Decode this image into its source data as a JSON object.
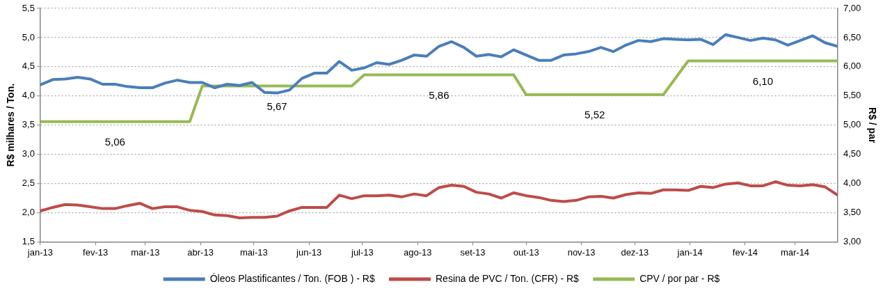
{
  "chart_data": {
    "type": "line",
    "x": [
      "2013-01-01",
      "2013-01-08",
      "2013-01-15",
      "2013-01-22",
      "2013-01-29",
      "2013-02-05",
      "2013-02-12",
      "2013-02-19",
      "2013-02-26",
      "2013-03-05",
      "2013-03-12",
      "2013-03-19",
      "2013-03-26",
      "2013-04-02",
      "2013-04-09",
      "2013-04-16",
      "2013-04-23",
      "2013-04-30",
      "2013-05-07",
      "2013-05-14",
      "2013-05-21",
      "2013-05-28",
      "2013-06-04",
      "2013-06-11",
      "2013-06-18",
      "2013-06-25",
      "2013-07-02",
      "2013-07-09",
      "2013-07-16",
      "2013-07-23",
      "2013-07-30",
      "2013-08-06",
      "2013-08-13",
      "2013-08-20",
      "2013-08-27",
      "2013-09-03",
      "2013-09-10",
      "2013-09-17",
      "2013-09-24",
      "2013-10-01",
      "2013-10-08",
      "2013-10-15",
      "2013-10-22",
      "2013-10-29",
      "2013-11-05",
      "2013-11-12",
      "2013-11-19",
      "2013-11-26",
      "2013-12-03",
      "2013-12-10",
      "2013-12-17",
      "2013-12-24",
      "2013-12-31",
      "2014-01-07",
      "2014-01-14",
      "2014-01-21",
      "2014-01-28",
      "2014-02-04",
      "2014-02-11",
      "2014-02-18",
      "2014-02-25",
      "2014-03-04",
      "2014-03-11",
      "2014-03-18",
      "2014-03-25"
    ],
    "series": [
      {
        "name": "Óleos Plastificantes / Ton. (FOB ) - R$",
        "color": "#4a7ebb",
        "values": [
          4.19,
          4.28,
          4.29,
          4.32,
          4.29,
          4.2,
          4.2,
          4.16,
          4.14,
          4.14,
          4.22,
          4.27,
          4.23,
          4.23,
          4.14,
          4.2,
          4.18,
          4.23,
          4.06,
          4.05,
          4.1,
          4.3,
          4.39,
          4.39,
          4.59,
          4.44,
          4.48,
          4.57,
          4.54,
          4.61,
          4.7,
          4.68,
          4.85,
          4.93,
          4.83,
          4.68,
          4.71,
          4.67,
          4.79,
          4.7,
          4.61,
          4.61,
          4.7,
          4.72,
          4.76,
          4.83,
          4.76,
          4.87,
          4.95,
          4.93,
          4.98,
          4.97,
          4.96,
          4.97,
          4.88,
          5.05,
          5.0,
          4.95,
          4.99,
          4.96,
          4.87,
          4.95,
          5.03,
          4.91,
          4.85
        ]
      },
      {
        "name": "Resina de PVC / Ton. (CFR) - R$",
        "color": "#be4b48",
        "values": [
          2.03,
          2.09,
          2.14,
          2.13,
          2.1,
          2.07,
          2.07,
          2.12,
          2.16,
          2.07,
          2.1,
          2.1,
          2.04,
          2.02,
          1.96,
          1.95,
          1.91,
          1.92,
          1.92,
          1.94,
          2.03,
          2.09,
          2.09,
          2.09,
          2.3,
          2.24,
          2.29,
          2.29,
          2.3,
          2.27,
          2.32,
          2.29,
          2.43,
          2.47,
          2.45,
          2.35,
          2.32,
          2.25,
          2.34,
          2.29,
          2.26,
          2.21,
          2.19,
          2.21,
          2.27,
          2.28,
          2.25,
          2.31,
          2.34,
          2.33,
          2.39,
          2.39,
          2.38,
          2.45,
          2.43,
          2.49,
          2.51,
          2.46,
          2.46,
          2.53,
          2.47,
          2.46,
          2.48,
          2.44,
          2.3
        ]
      },
      {
        "name": "CPV / por par - R$",
        "color": "#98b954",
        "axis": "y2",
        "values": [
          5.06,
          5.06,
          5.06,
          5.06,
          5.06,
          5.06,
          5.06,
          5.06,
          5.06,
          5.06,
          5.06,
          5.06,
          5.06,
          5.67,
          5.67,
          5.67,
          5.67,
          5.67,
          5.67,
          5.67,
          5.67,
          5.67,
          5.67,
          5.67,
          5.67,
          5.67,
          5.86,
          5.86,
          5.86,
          5.86,
          5.86,
          5.86,
          5.86,
          5.86,
          5.86,
          5.86,
          5.86,
          5.86,
          5.86,
          5.52,
          5.52,
          5.52,
          5.52,
          5.52,
          5.52,
          5.52,
          5.52,
          5.52,
          5.52,
          5.52,
          5.52,
          5.81,
          6.1,
          6.1,
          6.1,
          6.1,
          6.1,
          6.1,
          6.1,
          6.1,
          6.1,
          6.1,
          6.1,
          6.1,
          6.1
        ]
      }
    ],
    "xlim": [
      "2013-01-01",
      "2014-03-25"
    ],
    "xticks": [
      {
        "value": "2013-01-01",
        "label": "jan-13"
      },
      {
        "value": "2013-02-01",
        "label": "fev-13"
      },
      {
        "value": "2013-03-01",
        "label": "mar-13"
      },
      {
        "value": "2013-04-01",
        "label": "abr-13"
      },
      {
        "value": "2013-05-01",
        "label": "mai-13"
      },
      {
        "value": "2013-06-01",
        "label": "jun-13"
      },
      {
        "value": "2013-07-01",
        "label": "jul-13"
      },
      {
        "value": "2013-08-01",
        "label": "ago-13"
      },
      {
        "value": "2013-09-01",
        "label": "set-13"
      },
      {
        "value": "2013-10-01",
        "label": "out-13"
      },
      {
        "value": "2013-11-01",
        "label": "nov-13"
      },
      {
        "value": "2013-12-01",
        "label": "dez-13"
      },
      {
        "value": "2014-01-01",
        "label": "jan-14"
      },
      {
        "value": "2014-02-01",
        "label": "fev-14"
      },
      {
        "value": "2014-03-01",
        "label": "mar-14"
      }
    ],
    "ylim": [
      1.5,
      5.5
    ],
    "yticks": [
      {
        "value": 1.5,
        "label": "1,5"
      },
      {
        "value": 2.0,
        "label": "2,0"
      },
      {
        "value": 2.5,
        "label": "2,5"
      },
      {
        "value": 3.0,
        "label": "3,0"
      },
      {
        "value": 3.5,
        "label": "3,5"
      },
      {
        "value": 4.0,
        "label": "4,0"
      },
      {
        "value": 4.5,
        "label": "4,5"
      },
      {
        "value": 5.0,
        "label": "5,0"
      },
      {
        "value": 5.5,
        "label": "5,5"
      }
    ],
    "y2lim": [
      3,
      7
    ],
    "y2ticks": [
      {
        "value": 3,
        "label": "3,00"
      },
      {
        "value": 3.5,
        "label": "3,50"
      },
      {
        "value": 4,
        "label": "4,00"
      },
      {
        "value": 4.5,
        "label": "4,50"
      },
      {
        "value": 5,
        "label": "5,00"
      },
      {
        "value": 5.5,
        "label": "5,50"
      },
      {
        "value": 6,
        "label": "6,00"
      },
      {
        "value": 6.5,
        "label": "6,50"
      },
      {
        "value": 7,
        "label": "7,00"
      }
    ],
    "ylabel": "R$ milhares / Ton.",
    "y2label": "R$ / par",
    "annotations": [
      "5,06",
      "5,67",
      "5,86",
      "5,52",
      "6,10"
    ],
    "grid": "y",
    "legend": "bottom",
    "marker": "none",
    "line_style": "solid"
  }
}
